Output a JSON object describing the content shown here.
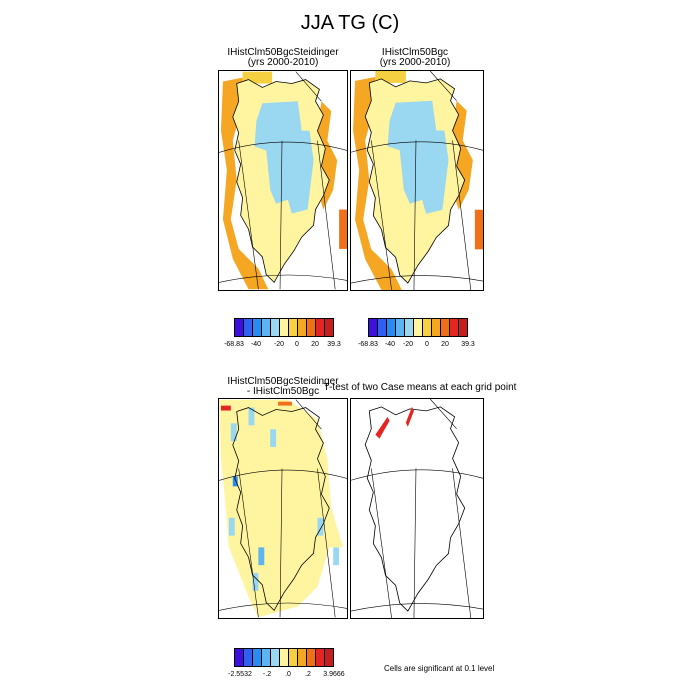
{
  "title": "JJA TG (C)",
  "panels": [
    {
      "id": "p1",
      "title1": "IHistClm50BgcSteidinger",
      "title2": "(yrs 2000-2010)"
    },
    {
      "id": "p2",
      "title1": "IHistClm50Bgc",
      "title2": "(yrs 2000-2010)"
    },
    {
      "id": "p3",
      "title1": "IHistClm50BgcSteidinger",
      "title2": "- IHistClm50Bgc"
    },
    {
      "id": "p4",
      "title1": "T-test of two Case means at each grid point",
      "title2": ""
    }
  ],
  "colorbars": [
    {
      "name": "abs-left",
      "labels": [
        "-68.83",
        "-40",
        "-20",
        "0",
        "20",
        "39.3"
      ]
    },
    {
      "name": "abs-right",
      "labels": [
        "-68.83",
        "-40",
        "-20",
        "0",
        "20",
        "39.3"
      ]
    },
    {
      "name": "diff",
      "labels": [
        "-2.5532",
        "-.2",
        ".0",
        ".2",
        "3.9666"
      ]
    }
  ],
  "colors": [
    "#3d10e0",
    "#2f60f0",
    "#2a8cf2",
    "#5cb4f0",
    "#9ad7f0",
    "#fff4a0",
    "#f5d040",
    "#f5a623",
    "#f0701a",
    "#e52424",
    "#c41e1e"
  ],
  "significance_note": "Cells are significant at 0.1 level",
  "chart_data": [
    {
      "type": "heatmap",
      "title": "IHistClm50BgcSteidinger (yrs 2000-2010)",
      "variable": "JJA TG (C)",
      "scale_min": -68.83,
      "scale_max": 39.3,
      "ticks": [
        -68.83,
        -40,
        -20,
        0,
        20,
        39.3
      ],
      "description_levels": "interior ice sheet light blue (< 0); margins yellow to orange (> 0)"
    },
    {
      "type": "heatmap",
      "title": "IHistClm50Bgc (yrs 2000-2010)",
      "variable": "JJA TG (C)",
      "scale_min": -68.83,
      "scale_max": 39.3,
      "ticks": [
        -68.83,
        -40,
        -20,
        0,
        20,
        39.3
      ]
    },
    {
      "type": "heatmap",
      "title": "IHistClm50BgcSteidinger - IHistClm50Bgc",
      "scale_min": -2.5532,
      "scale_max": 3.9666,
      "ticks": [
        -2.5532,
        -0.2,
        0.0,
        0.2,
        3.9666
      ]
    },
    {
      "type": "heatmap",
      "title": "T-test of two Case means at each grid point",
      "note": "Cells are significant at 0.1 level"
    }
  ]
}
